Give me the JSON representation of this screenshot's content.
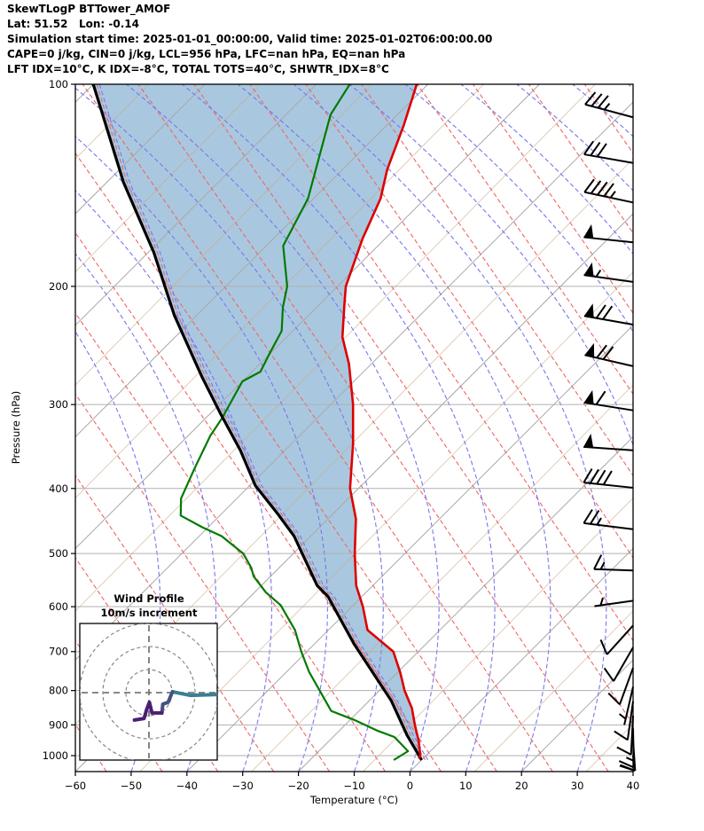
{
  "header": {
    "title": "SkewTLogP BTTower_AMOF",
    "coords": "Lat: 51.52   Lon: -0.14",
    "sim_time": "Simulation start time: 2025-01-01_00:00:00, Valid time: 2025-01-02T06:00:00.00",
    "indices1": "CAPE=0 j/kg, CIN=0 j/kg, LCL=956 hPa, LFC=nan hPa, EQ=nan hPa",
    "indices2": "LFT IDX=10°C, K IDX=-8°C, TOTAL TOTS=40°C, SHWTR_IDX=8°C"
  },
  "chart_data": {
    "type": "skew-t-log-p",
    "title": "SkewTLogP BTTower_AMOF",
    "station": {
      "lat": 51.52,
      "lon": -0.14
    },
    "x_axis": {
      "label": "Temperature (°C)",
      "min": -60,
      "max": 40,
      "ticks": [
        -60,
        -50,
        -40,
        -30,
        -20,
        -10,
        0,
        10,
        20,
        30,
        40
      ]
    },
    "y_axis": {
      "label": "Pressure (hPa)",
      "scale": "log",
      "min": 100,
      "max": 1055,
      "ticks": [
        100,
        200,
        300,
        400,
        500,
        600,
        700,
        800,
        900,
        1000
      ]
    },
    "background": {
      "isotherm_step_c": 20,
      "colors": {
        "isotherm_major": "#a8a8a8",
        "isotherm_minor": "#c9a57f",
        "dry_adiabat": "#ee6666",
        "moist_adiabat": "#7777ee",
        "grid": "#b0b0b0",
        "shading": "#a9c8df"
      }
    },
    "profiles": {
      "temperature": {
        "name": "temperature",
        "color": "#dd0000",
        "points": [
          [
            100,
            -122
          ],
          [
            115,
            -117
          ],
          [
            134,
            -112
          ],
          [
            148,
            -108
          ],
          [
            170,
            -104
          ],
          [
            200,
            -98.5
          ],
          [
            215,
            -95
          ],
          [
            238,
            -90
          ],
          [
            261,
            -84
          ],
          [
            300,
            -76
          ],
          [
            343,
            -69
          ],
          [
            400,
            -61.5
          ],
          [
            444,
            -55
          ],
          [
            500,
            -49
          ],
          [
            558,
            -43
          ],
          [
            600,
            -38
          ],
          [
            650,
            -33
          ],
          [
            700,
            -24.5
          ],
          [
            752,
            -19.5
          ],
          [
            800,
            -15.5
          ],
          [
            850,
            -11
          ],
          [
            900,
            -7.5
          ],
          [
            950,
            -4
          ],
          [
            1000,
            -1
          ],
          [
            1010,
            -0.8
          ]
        ]
      },
      "dewpoint": {
        "name": "dewpoint",
        "color": "#007a00",
        "points": [
          [
            100,
            -134
          ],
          [
            111,
            -132
          ],
          [
            148,
            -121
          ],
          [
            174,
            -117
          ],
          [
            200,
            -109
          ],
          [
            215,
            -106
          ],
          [
            233,
            -102
          ],
          [
            253,
            -100
          ],
          [
            268,
            -98.5
          ],
          [
            277,
            -100
          ],
          [
            315,
            -97
          ],
          [
            334,
            -96
          ],
          [
            373,
            -93
          ],
          [
            414,
            -90
          ],
          [
            439,
            -87
          ],
          [
            457,
            -81
          ],
          [
            471,
            -76
          ],
          [
            500,
            -69
          ],
          [
            525,
            -65
          ],
          [
            541,
            -63
          ],
          [
            571,
            -58
          ],
          [
            597,
            -53
          ],
          [
            650,
            -46
          ],
          [
            700,
            -41
          ],
          [
            750,
            -36
          ],
          [
            858,
            -25
          ],
          [
            886,
            -19
          ],
          [
            919,
            -13
          ],
          [
            938,
            -9
          ],
          [
            985,
            -4
          ],
          [
            1000,
            -4.5
          ],
          [
            1015,
            -5
          ]
        ]
      },
      "parcel": {
        "name": "parcel",
        "color": "#000000",
        "points": [
          [
            100,
            -180
          ],
          [
            140,
            -157
          ],
          [
            178,
            -139
          ],
          [
            221,
            -124
          ],
          [
            273,
            -108
          ],
          [
            310,
            -98
          ],
          [
            351,
            -88
          ],
          [
            396,
            -79
          ],
          [
            436,
            -70
          ],
          [
            471,
            -63
          ],
          [
            558,
            -50
          ],
          [
            580,
            -46
          ],
          [
            681,
            -33
          ],
          [
            829,
            -16
          ],
          [
            933,
            -7
          ],
          [
            1015,
            0
          ]
        ]
      }
    },
    "shading_between": [
      "parcel",
      "temperature"
    ],
    "wind_barbs": {
      "units": "m/s",
      "levels": [
        {
          "p": 112,
          "speed": 35,
          "dir": 285
        },
        {
          "p": 131,
          "speed": 30,
          "dir": 280
        },
        {
          "p": 150,
          "speed": 45,
          "dir": 282
        },
        {
          "p": 172,
          "speed": 50,
          "dir": 276
        },
        {
          "p": 197,
          "speed": 55,
          "dir": 278
        },
        {
          "p": 228,
          "speed": 70,
          "dir": 280
        },
        {
          "p": 263,
          "speed": 70,
          "dir": 283
        },
        {
          "p": 306,
          "speed": 60,
          "dir": 279
        },
        {
          "p": 351,
          "speed": 50,
          "dir": 274
        },
        {
          "p": 399,
          "speed": 40,
          "dir": 276
        },
        {
          "p": 460,
          "speed": 25,
          "dir": 277
        },
        {
          "p": 530,
          "speed": 15,
          "dir": 272
        },
        {
          "p": 588,
          "speed": 5,
          "dir": 262
        },
        {
          "p": 640,
          "speed": 10,
          "dir": 222
        },
        {
          "p": 690,
          "speed": 10,
          "dir": 210
        },
        {
          "p": 740,
          "speed": 10,
          "dir": 200
        },
        {
          "p": 790,
          "speed": 5,
          "dir": 193
        },
        {
          "p": 830,
          "speed": 10,
          "dir": 188
        },
        {
          "p": 872,
          "speed": 10,
          "dir": 183
        },
        {
          "p": 911,
          "speed": 15,
          "dir": 179
        },
        {
          "p": 950,
          "speed": 10,
          "dir": 176
        },
        {
          "p": 1000,
          "speed": 10,
          "dir": 173
        }
      ]
    },
    "hodograph_inset": {
      "title": "Wind Profile",
      "subtitle": "10m/s increment",
      "ring_increment_ms": 10,
      "rings_ms": [
        10,
        20,
        30
      ],
      "trace_segments": [
        {
          "color": "#3b7e95",
          "points_uv": [
            [
              29.8,
              -0.8
            ],
            [
              17.9,
              -1.2
            ],
            [
              10.2,
              0.4
            ]
          ]
        },
        {
          "color": "#45517e",
          "points_uv": [
            [
              10.2,
              0.4
            ],
            [
              8.3,
              -4.2
            ],
            [
              6.0,
              -5.0
            ],
            [
              5.6,
              -8.8
            ]
          ]
        },
        {
          "color": "#4a1f72",
          "points_uv": [
            [
              5.6,
              -8.8
            ],
            [
              1.3,
              -8.8
            ],
            [
              0.2,
              -4.2
            ],
            [
              -1.0,
              -7.3
            ],
            [
              -2.1,
              -11.2
            ],
            [
              -6.3,
              -11.9
            ]
          ]
        }
      ]
    }
  }
}
